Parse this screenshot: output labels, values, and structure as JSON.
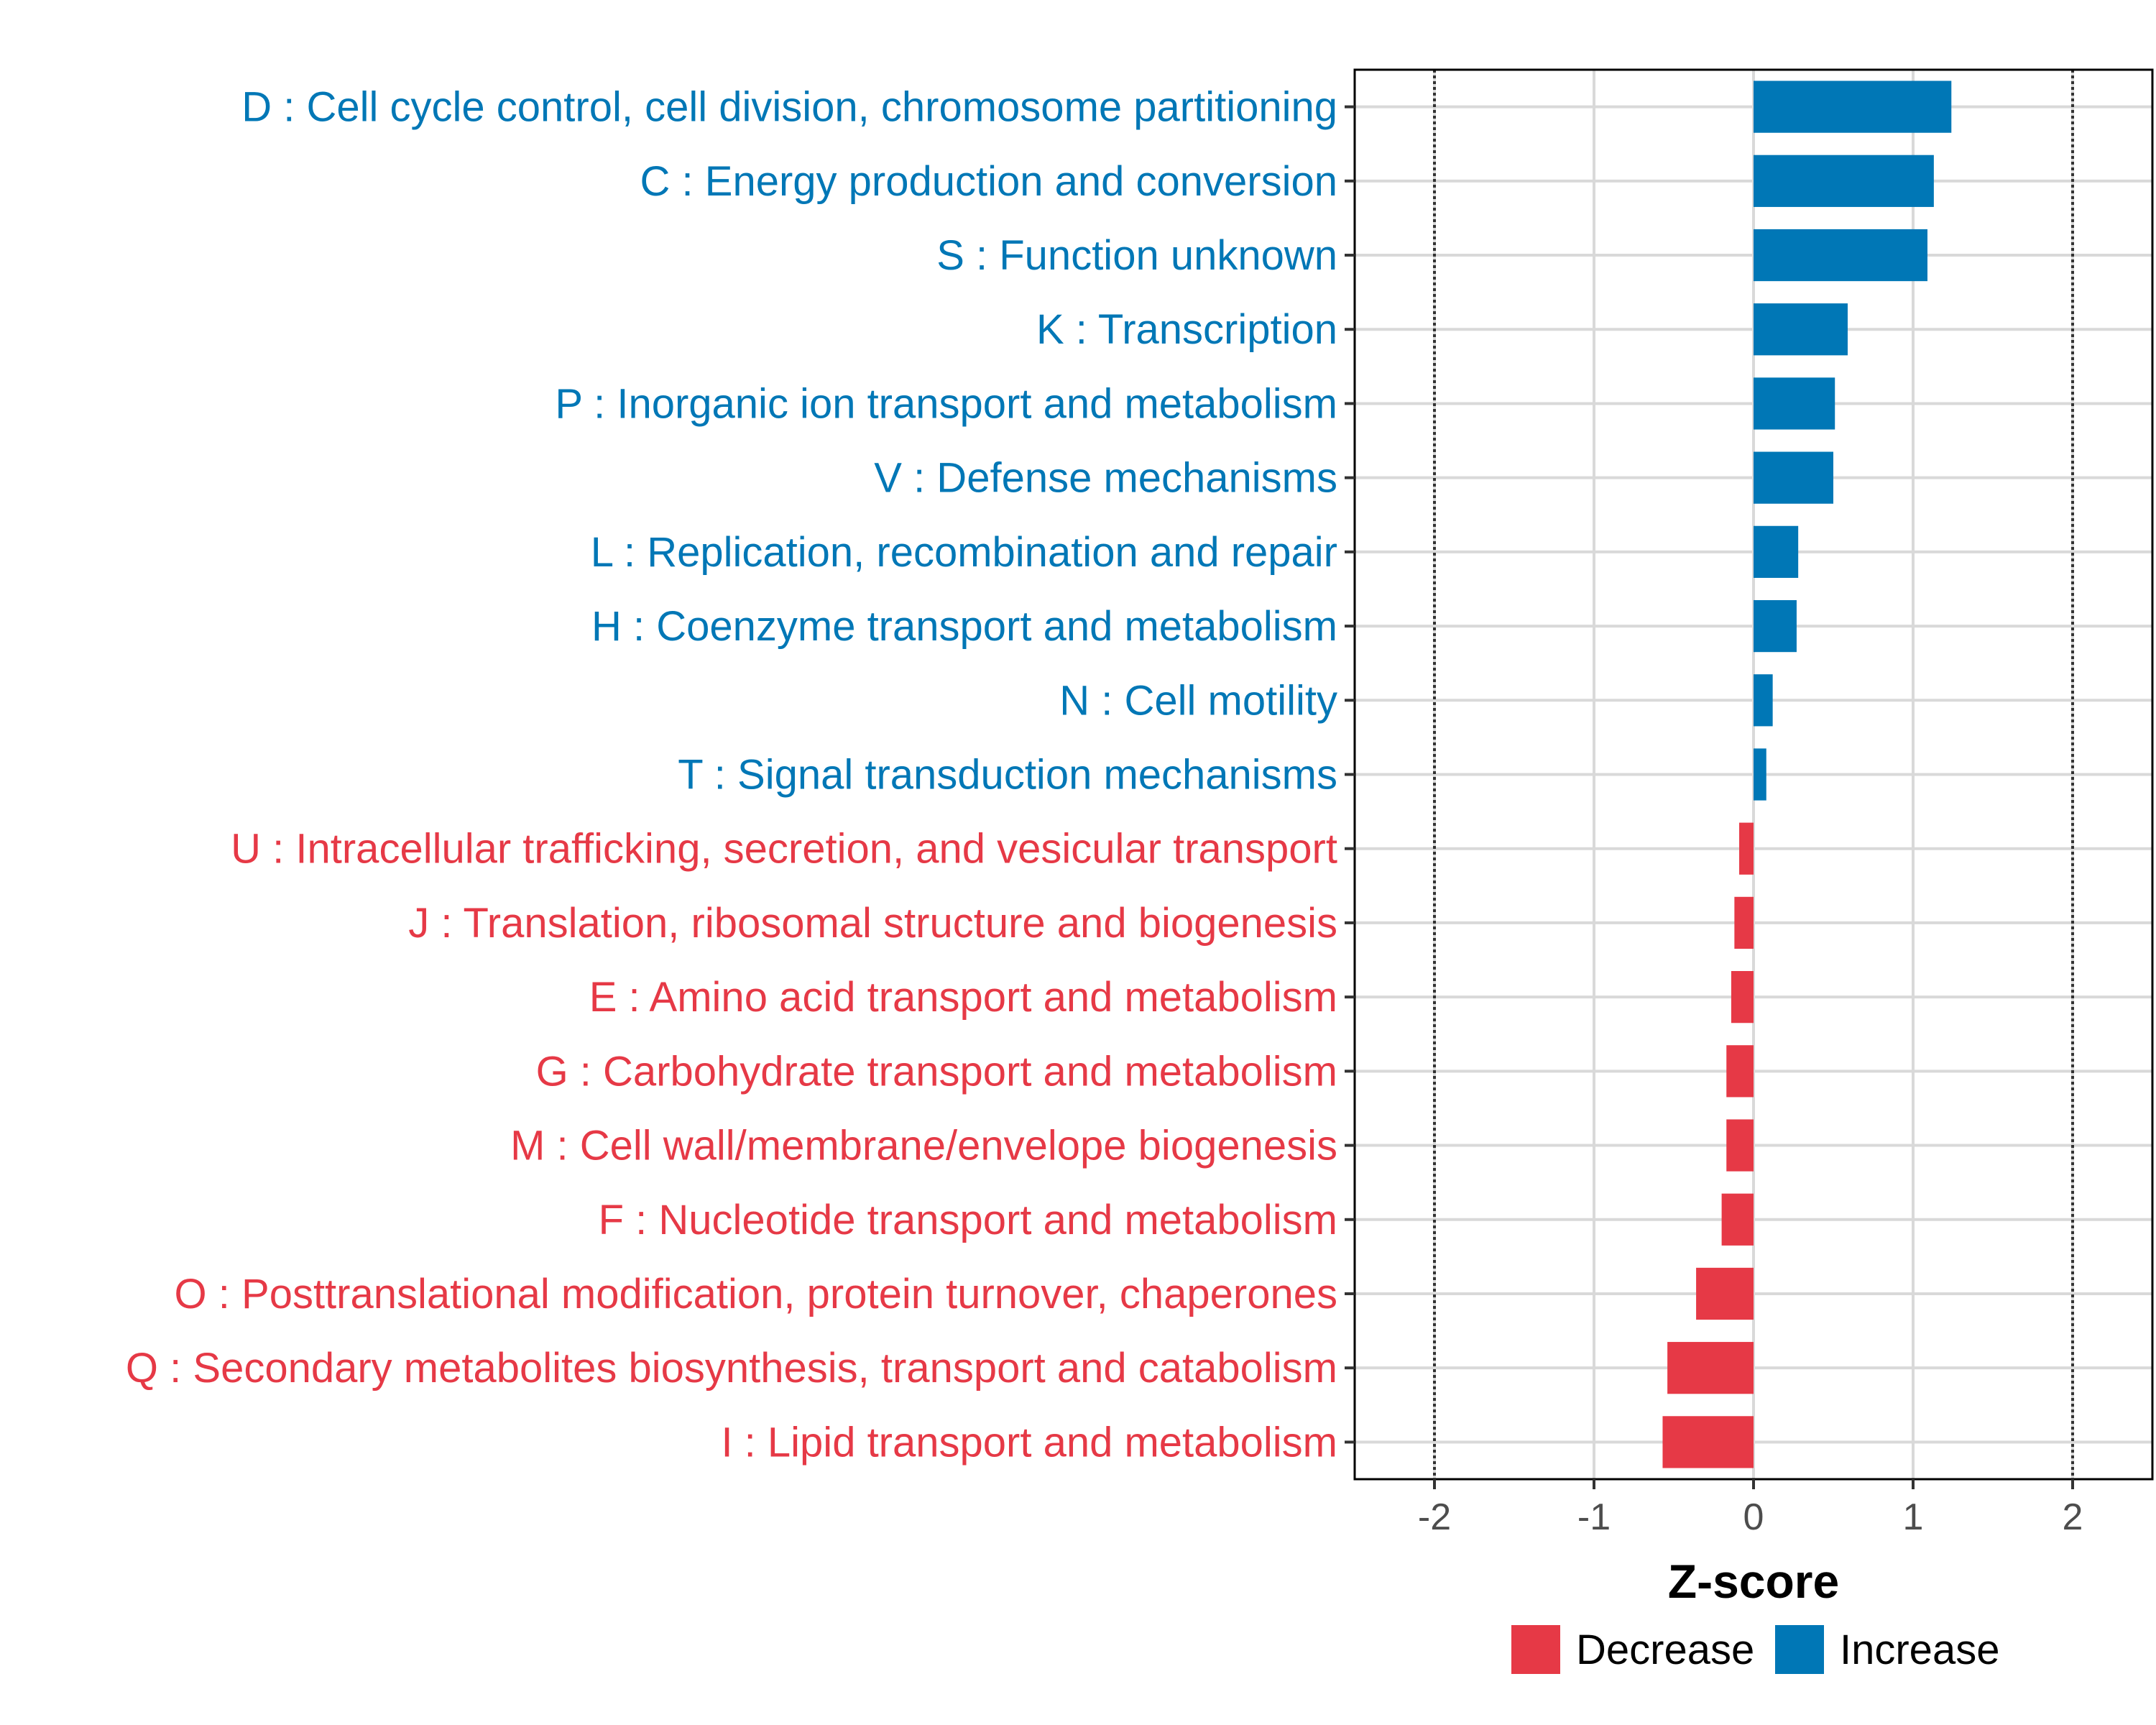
{
  "chart_data": {
    "type": "bar",
    "orientation": "horizontal",
    "title": "",
    "xlabel": "Z-score",
    "ylabel": "",
    "xlim": [
      -2.5,
      2.5
    ],
    "xticks": [
      -2,
      -1,
      0,
      1,
      2
    ],
    "xtick_labels": [
      "-2",
      "-1",
      "0",
      "1",
      "2"
    ],
    "reference_lines": [
      -2,
      2
    ],
    "grid": true,
    "legend_position": "bottom",
    "categories": [
      "D : Cell cycle control, cell division, chromosome partitioning",
      "C : Energy production and conversion",
      "S : Function unknown",
      "K : Transcription",
      "P : Inorganic ion transport and metabolism",
      "V : Defense mechanisms",
      "L : Replication, recombination and repair",
      "H : Coenzyme transport and metabolism",
      "N : Cell motility",
      "T : Signal transduction mechanisms",
      "U : Intracellular trafficking, secretion, and vesicular transport",
      "J : Translation, ribosomal structure and biogenesis",
      "E : Amino acid transport and metabolism",
      "G : Carbohydrate transport and metabolism",
      "M : Cell wall/membrane/envelope biogenesis",
      "F : Nucleotide transport and metabolism",
      "O : Posttranslational modification, protein turnover, chaperones",
      "Q : Secondary metabolites biosynthesis, transport and catabolism",
      "I : Lipid transport and metabolism"
    ],
    "values": [
      1.24,
      1.13,
      1.09,
      0.59,
      0.51,
      0.5,
      0.28,
      0.27,
      0.12,
      0.08,
      -0.09,
      -0.12,
      -0.14,
      -0.17,
      -0.17,
      -0.2,
      -0.36,
      -0.54,
      -0.57
    ],
    "groups": [
      "Increase",
      "Increase",
      "Increase",
      "Increase",
      "Increase",
      "Increase",
      "Increase",
      "Increase",
      "Increase",
      "Increase",
      "Decrease",
      "Decrease",
      "Decrease",
      "Decrease",
      "Decrease",
      "Decrease",
      "Decrease",
      "Decrease",
      "Decrease"
    ],
    "legend": [
      {
        "name": "Decrease",
        "color": "#e63946"
      },
      {
        "name": "Increase",
        "color": "#0077b6"
      }
    ]
  }
}
